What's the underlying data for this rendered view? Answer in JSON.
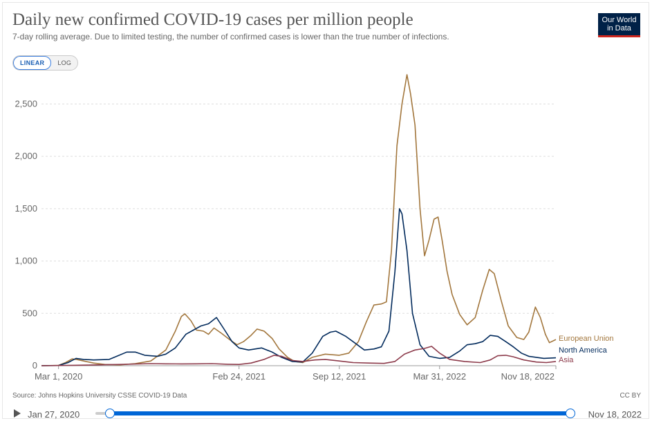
{
  "header": {
    "title": "Daily new confirmed COVID-19 cases per million people",
    "subtitle": "7-day rolling average. Due to limited testing, the number of confirmed cases is lower than the true number of infections.",
    "logo_line1": "Our World",
    "logo_line2": "in Data"
  },
  "controls": {
    "linear_label": "LINEAR",
    "log_label": "LOG",
    "selected_scale": "linear"
  },
  "footer": {
    "source": "Source: Johns Hopkins University CSSE COVID-19 Data",
    "license": "CC BY"
  },
  "timeline": {
    "start_label": "Jan 27, 2020",
    "end_label": "Nov 18, 2022"
  },
  "colors": {
    "european_union": "#a2763c",
    "north_america": "#00295b",
    "asia": "#8c3a4a",
    "grid": "#dddddd",
    "accent": "#0066d6"
  },
  "chart_data": {
    "type": "line",
    "title": "Daily new confirmed COVID-19 cases per million people",
    "subtitle": "7-day rolling average. Due to limited testing, the number of confirmed cases is lower than the true number of infections.",
    "xlabel": "",
    "ylabel": "",
    "x_axis": {
      "type": "date",
      "range": [
        "2020-01-27",
        "2022-11-18"
      ],
      "ticks": [
        {
          "date": "2020-03-01",
          "label": "Mar 1, 2020"
        },
        {
          "date": "2021-02-24",
          "label": "Feb 24, 2021"
        },
        {
          "date": "2021-09-12",
          "label": "Sep 12, 2021"
        },
        {
          "date": "2022-03-31",
          "label": "Mar 31, 2022"
        },
        {
          "date": "2022-11-18",
          "label": "Nov 18, 2022"
        }
      ]
    },
    "y_axis": {
      "range": [
        0,
        2800
      ],
      "ticks": [
        {
          "value": 0,
          "label": "0"
        },
        {
          "value": 500,
          "label": "500"
        },
        {
          "value": 1000,
          "label": "1,000"
        },
        {
          "value": 1500,
          "label": "1,500"
        },
        {
          "value": 2000,
          "label": "2,000"
        },
        {
          "value": 2500,
          "label": "2,500"
        }
      ]
    },
    "grid": "horizontal dashed",
    "legend": "inline labels at right end of lines",
    "series": [
      {
        "name": "European Union",
        "points": [
          [
            "2020-01-27",
            0
          ],
          [
            "2020-03-01",
            3
          ],
          [
            "2020-03-15",
            30
          ],
          [
            "2020-03-28",
            65
          ],
          [
            "2020-04-05",
            60
          ],
          [
            "2020-04-20",
            45
          ],
          [
            "2020-05-10",
            25
          ],
          [
            "2020-06-01",
            12
          ],
          [
            "2020-07-01",
            8
          ],
          [
            "2020-08-01",
            20
          ],
          [
            "2020-09-01",
            45
          ],
          [
            "2020-10-01",
            150
          ],
          [
            "2020-10-20",
            330
          ],
          [
            "2020-11-01",
            470
          ],
          [
            "2020-11-08",
            495
          ],
          [
            "2020-11-20",
            430
          ],
          [
            "2020-12-01",
            340
          ],
          [
            "2020-12-15",
            330
          ],
          [
            "2020-12-25",
            300
          ],
          [
            "2021-01-05",
            360
          ],
          [
            "2021-01-20",
            310
          ],
          [
            "2021-02-05",
            250
          ],
          [
            "2021-02-20",
            200
          ],
          [
            "2021-03-05",
            230
          ],
          [
            "2021-03-20",
            290
          ],
          [
            "2021-04-01",
            350
          ],
          [
            "2021-04-15",
            330
          ],
          [
            "2021-05-01",
            260
          ],
          [
            "2021-05-15",
            160
          ],
          [
            "2021-06-01",
            80
          ],
          [
            "2021-06-15",
            40
          ],
          [
            "2021-07-01",
            30
          ],
          [
            "2021-07-20",
            80
          ],
          [
            "2021-08-15",
            110
          ],
          [
            "2021-09-12",
            100
          ],
          [
            "2021-10-01",
            120
          ],
          [
            "2021-10-20",
            230
          ],
          [
            "2021-11-05",
            420
          ],
          [
            "2021-11-20",
            580
          ],
          [
            "2021-12-05",
            590
          ],
          [
            "2021-12-15",
            610
          ],
          [
            "2021-12-25",
            1100
          ],
          [
            "2022-01-05",
            2100
          ],
          [
            "2022-01-15",
            2500
          ],
          [
            "2022-01-25",
            2780
          ],
          [
            "2022-02-01",
            2600
          ],
          [
            "2022-02-10",
            2300
          ],
          [
            "2022-02-20",
            1500
          ],
          [
            "2022-03-01",
            1050
          ],
          [
            "2022-03-10",
            1200
          ],
          [
            "2022-03-20",
            1400
          ],
          [
            "2022-03-28",
            1420
          ],
          [
            "2022-04-05",
            1200
          ],
          [
            "2022-04-15",
            900
          ],
          [
            "2022-04-25",
            680
          ],
          [
            "2022-05-10",
            490
          ],
          [
            "2022-05-25",
            390
          ],
          [
            "2022-06-10",
            460
          ],
          [
            "2022-06-25",
            720
          ],
          [
            "2022-07-08",
            920
          ],
          [
            "2022-07-18",
            880
          ],
          [
            "2022-08-01",
            620
          ],
          [
            "2022-08-15",
            380
          ],
          [
            "2022-09-01",
            270
          ],
          [
            "2022-09-15",
            250
          ],
          [
            "2022-09-25",
            320
          ],
          [
            "2022-10-08",
            560
          ],
          [
            "2022-10-18",
            460
          ],
          [
            "2022-10-28",
            300
          ],
          [
            "2022-11-05",
            220
          ],
          [
            "2022-11-18",
            250
          ]
        ]
      },
      {
        "name": "North America",
        "points": [
          [
            "2020-01-27",
            0
          ],
          [
            "2020-03-01",
            2
          ],
          [
            "2020-03-20",
            30
          ],
          [
            "2020-04-05",
            70
          ],
          [
            "2020-04-20",
            60
          ],
          [
            "2020-05-10",
            55
          ],
          [
            "2020-06-10",
            60
          ],
          [
            "2020-06-25",
            90
          ],
          [
            "2020-07-15",
            130
          ],
          [
            "2020-08-01",
            130
          ],
          [
            "2020-08-20",
            100
          ],
          [
            "2020-09-15",
            90
          ],
          [
            "2020-10-01",
            110
          ],
          [
            "2020-10-20",
            170
          ],
          [
            "2020-11-10",
            300
          ],
          [
            "2020-11-25",
            340
          ],
          [
            "2020-12-10",
            380
          ],
          [
            "2020-12-25",
            400
          ],
          [
            "2021-01-10",
            460
          ],
          [
            "2021-01-25",
            350
          ],
          [
            "2021-02-10",
            230
          ],
          [
            "2021-02-24",
            170
          ],
          [
            "2021-03-15",
            150
          ],
          [
            "2021-04-10",
            170
          ],
          [
            "2021-05-01",
            130
          ],
          [
            "2021-05-20",
            80
          ],
          [
            "2021-06-10",
            40
          ],
          [
            "2021-07-01",
            35
          ],
          [
            "2021-07-20",
            120
          ],
          [
            "2021-08-10",
            280
          ],
          [
            "2021-08-25",
            320
          ],
          [
            "2021-09-05",
            330
          ],
          [
            "2021-09-25",
            280
          ],
          [
            "2021-10-15",
            210
          ],
          [
            "2021-11-01",
            150
          ],
          [
            "2021-11-20",
            160
          ],
          [
            "2021-12-05",
            180
          ],
          [
            "2021-12-20",
            330
          ],
          [
            "2022-01-01",
            900
          ],
          [
            "2022-01-10",
            1500
          ],
          [
            "2022-01-15",
            1450
          ],
          [
            "2022-01-25",
            1100
          ],
          [
            "2022-02-05",
            500
          ],
          [
            "2022-02-20",
            200
          ],
          [
            "2022-03-10",
            90
          ],
          [
            "2022-03-31",
            70
          ],
          [
            "2022-04-20",
            80
          ],
          [
            "2022-05-10",
            140
          ],
          [
            "2022-05-25",
            200
          ],
          [
            "2022-06-10",
            210
          ],
          [
            "2022-06-25",
            230
          ],
          [
            "2022-07-10",
            290
          ],
          [
            "2022-07-25",
            280
          ],
          [
            "2022-08-10",
            230
          ],
          [
            "2022-08-25",
            180
          ],
          [
            "2022-09-10",
            120
          ],
          [
            "2022-09-25",
            90
          ],
          [
            "2022-10-10",
            80
          ],
          [
            "2022-10-25",
            70
          ],
          [
            "2022-11-18",
            75
          ]
        ]
      },
      {
        "name": "Asia",
        "points": [
          [
            "2020-01-27",
            0
          ],
          [
            "2020-03-01",
            2
          ],
          [
            "2020-04-01",
            4
          ],
          [
            "2020-05-01",
            6
          ],
          [
            "2020-06-01",
            9
          ],
          [
            "2020-07-01",
            12
          ],
          [
            "2020-08-01",
            16
          ],
          [
            "2020-09-01",
            20
          ],
          [
            "2020-10-01",
            18
          ],
          [
            "2020-11-01",
            17
          ],
          [
            "2020-12-01",
            18
          ],
          [
            "2021-01-01",
            20
          ],
          [
            "2021-02-01",
            14
          ],
          [
            "2021-02-24",
            12
          ],
          [
            "2021-03-20",
            25
          ],
          [
            "2021-04-15",
            60
          ],
          [
            "2021-05-05",
            100
          ],
          [
            "2021-05-20",
            90
          ],
          [
            "2021-06-10",
            50
          ],
          [
            "2021-07-01",
            40
          ],
          [
            "2021-07-25",
            55
          ],
          [
            "2021-08-15",
            60
          ],
          [
            "2021-09-12",
            45
          ],
          [
            "2021-10-10",
            30
          ],
          [
            "2021-11-10",
            25
          ],
          [
            "2021-12-10",
            22
          ],
          [
            "2022-01-01",
            40
          ],
          [
            "2022-01-20",
            110
          ],
          [
            "2022-02-10",
            150
          ],
          [
            "2022-03-01",
            165
          ],
          [
            "2022-03-15",
            185
          ],
          [
            "2022-03-31",
            120
          ],
          [
            "2022-04-20",
            60
          ],
          [
            "2022-05-20",
            40
          ],
          [
            "2022-06-20",
            30
          ],
          [
            "2022-07-10",
            55
          ],
          [
            "2022-07-25",
            95
          ],
          [
            "2022-08-10",
            100
          ],
          [
            "2022-08-25",
            85
          ],
          [
            "2022-09-15",
            55
          ],
          [
            "2022-10-10",
            35
          ],
          [
            "2022-10-30",
            30
          ],
          [
            "2022-11-18",
            40
          ]
        ]
      }
    ]
  }
}
